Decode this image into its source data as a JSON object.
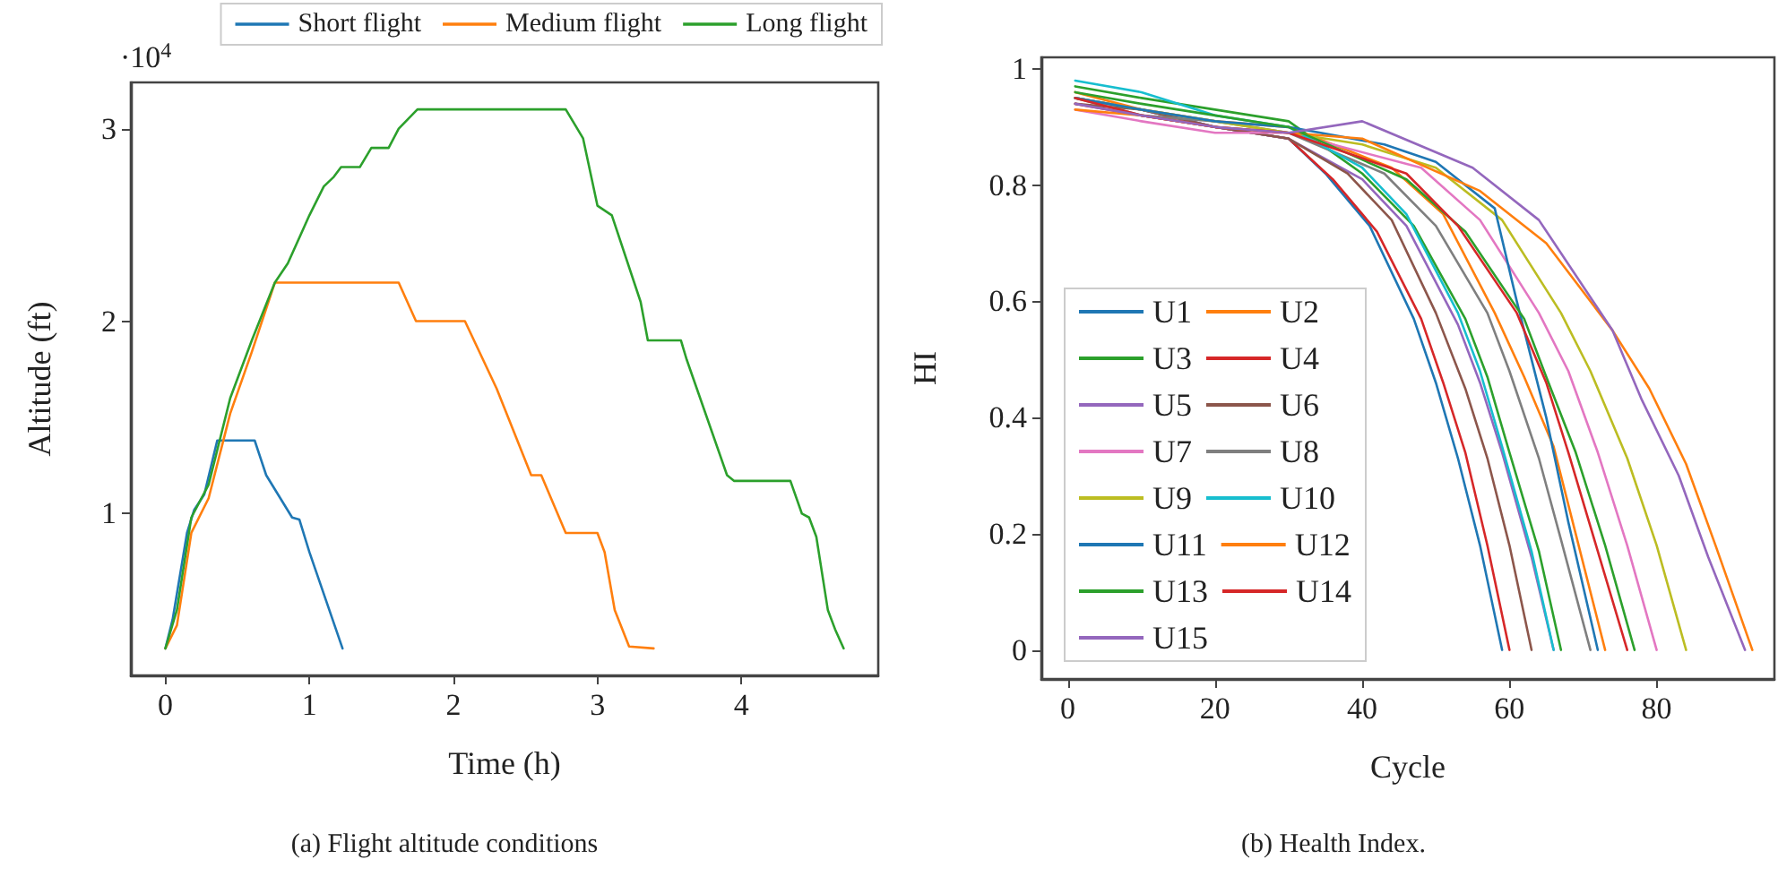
{
  "chart_data": [
    {
      "type": "line",
      "title": "(a) Flight altitude conditions",
      "xlabel": "Time (h)",
      "ylabel": "Altitude (ft)",
      "annotations": [
        "·10$^{4}$"
      ],
      "xlim": [
        -0.24,
        4.95
      ],
      "ylim": [
        0.16,
        3.24
      ],
      "xticks": [
        0,
        1,
        2,
        3,
        4
      ],
      "yticks": [
        1,
        2,
        3
      ],
      "grid": false,
      "legend": "top right",
      "marker": "none",
      "series": [
        {
          "name": "Short flight",
          "color": "#1f77b4",
          "x": [
            0,
            0.05,
            0.15,
            0.2,
            0.27,
            0.36,
            0.62,
            0.7,
            0.88,
            0.93,
            1.0,
            1.23
          ],
          "values": [
            0.3,
            0.45,
            0.9,
            1.02,
            1.1,
            1.38,
            1.38,
            1.2,
            0.98,
            0.97,
            0.8,
            0.3
          ]
        },
        {
          "name": "Medium flight",
          "color": "#ff7f0e",
          "x": [
            0,
            0.08,
            0.18,
            0.3,
            0.45,
            0.6,
            0.76,
            1.62,
            1.74,
            2.08,
            2.3,
            2.54,
            2.61,
            2.78,
            3.0,
            3.05,
            3.12,
            3.22,
            3.39
          ],
          "values": [
            0.3,
            0.42,
            0.9,
            1.08,
            1.52,
            1.84,
            2.2,
            2.2,
            2.0,
            2.0,
            1.65,
            1.2,
            1.2,
            0.9,
            0.9,
            0.8,
            0.5,
            0.31,
            0.3
          ]
        },
        {
          "name": "Long flight",
          "color": "#2ca02c",
          "x": [
            0,
            0.08,
            0.18,
            0.3,
            0.45,
            0.6,
            0.76,
            0.85,
            1.0,
            1.1,
            1.17,
            1.22,
            1.35,
            1.43,
            1.55,
            1.62,
            1.75,
            2.78,
            2.9,
            3.0,
            3.1,
            3.3,
            3.35,
            3.58,
            3.62,
            3.9,
            3.95,
            4.34,
            4.42,
            4.47,
            4.52,
            4.6,
            4.65,
            4.71
          ],
          "values": [
            0.3,
            0.5,
            0.98,
            1.15,
            1.6,
            1.9,
            2.2,
            2.3,
            2.55,
            2.7,
            2.75,
            2.8,
            2.8,
            2.9,
            2.9,
            3.0,
            3.1,
            3.1,
            2.95,
            2.6,
            2.55,
            2.1,
            1.9,
            1.9,
            1.8,
            1.2,
            1.17,
            1.17,
            1.0,
            0.98,
            0.88,
            0.5,
            0.4,
            0.3
          ]
        }
      ]
    },
    {
      "type": "line",
      "title": "(b) Health Index.",
      "xlabel": "Cycle",
      "ylabel": "HI",
      "xlim": [
        -3.6,
        96
      ],
      "ylim": [
        -0.05,
        1.02
      ],
      "xticks": [
        0,
        20,
        40,
        60,
        80
      ],
      "yticks": [
        0,
        0.2,
        0.4,
        0.6,
        0.8,
        1
      ],
      "grid": false,
      "legend": "bottom left",
      "marker": "none",
      "series": [
        {
          "name": "U1",
          "color": "#1f77b4",
          "x": [
            1,
            10,
            20,
            30,
            35,
            41,
            47,
            50,
            53,
            56,
            59
          ],
          "values": [
            0.95,
            0.93,
            0.9,
            0.88,
            0.82,
            0.73,
            0.57,
            0.46,
            0.33,
            0.18,
            0
          ]
        },
        {
          "name": "U2",
          "color": "#ff7f0e",
          "x": [
            1,
            10,
            20,
            30,
            44,
            51,
            58,
            62,
            66,
            69,
            73
          ],
          "values": [
            0.96,
            0.93,
            0.91,
            0.9,
            0.83,
            0.75,
            0.58,
            0.47,
            0.35,
            0.2,
            0
          ]
        },
        {
          "name": "U3",
          "color": "#2ca02c",
          "x": [
            1,
            10,
            20,
            30,
            40,
            47,
            54,
            57,
            60,
            64,
            67
          ],
          "values": [
            0.97,
            0.95,
            0.93,
            0.91,
            0.82,
            0.73,
            0.57,
            0.47,
            0.34,
            0.17,
            0
          ]
        },
        {
          "name": "U4",
          "color": "#d62728",
          "x": [
            1,
            10,
            20,
            30,
            36,
            42,
            48,
            51,
            54,
            57,
            60
          ],
          "values": [
            0.94,
            0.92,
            0.9,
            0.88,
            0.81,
            0.72,
            0.57,
            0.46,
            0.34,
            0.18,
            0
          ]
        },
        {
          "name": "U5",
          "color": "#9467bd",
          "x": [
            1,
            10,
            20,
            30,
            40,
            46,
            53,
            56,
            59,
            63,
            66
          ],
          "values": [
            0.95,
            0.93,
            0.9,
            0.88,
            0.81,
            0.73,
            0.56,
            0.46,
            0.34,
            0.16,
            0
          ]
        },
        {
          "name": "U6",
          "color": "#8c564b",
          "x": [
            1,
            10,
            20,
            30,
            38,
            44,
            50,
            54,
            57,
            60,
            63
          ],
          "values": [
            0.94,
            0.93,
            0.9,
            0.88,
            0.82,
            0.74,
            0.58,
            0.45,
            0.33,
            0.18,
            0
          ]
        },
        {
          "name": "U7",
          "color": "#e377c2",
          "x": [
            1,
            10,
            20,
            30,
            48,
            56,
            64,
            68,
            72,
            76,
            80
          ],
          "values": [
            0.93,
            0.91,
            0.89,
            0.89,
            0.83,
            0.74,
            0.58,
            0.48,
            0.34,
            0.18,
            0
          ]
        },
        {
          "name": "U8",
          "color": "#7f7f7f",
          "x": [
            1,
            10,
            20,
            30,
            43,
            50,
            57,
            60,
            64,
            67,
            71
          ],
          "values": [
            0.95,
            0.92,
            0.91,
            0.89,
            0.82,
            0.73,
            0.58,
            0.48,
            0.33,
            0.19,
            0
          ]
        },
        {
          "name": "U9",
          "color": "#bcbd22",
          "x": [
            1,
            10,
            20,
            30,
            40,
            50,
            59,
            67,
            71,
            76,
            80,
            84
          ],
          "values": [
            0.95,
            0.93,
            0.91,
            0.89,
            0.87,
            0.83,
            0.74,
            0.58,
            0.48,
            0.33,
            0.18,
            0
          ]
        },
        {
          "name": "U10",
          "color": "#17becf",
          "x": [
            1,
            10,
            20,
            30,
            40,
            46,
            53,
            56,
            59,
            63,
            66
          ],
          "values": [
            0.98,
            0.96,
            0.92,
            0.9,
            0.83,
            0.75,
            0.58,
            0.48,
            0.35,
            0.17,
            0
          ]
        },
        {
          "name": "U11",
          "color": "#1f77b4",
          "x": [
            1,
            10,
            20,
            30,
            43,
            50,
            58,
            61,
            65,
            68,
            72
          ],
          "values": [
            0.95,
            0.93,
            0.91,
            0.9,
            0.87,
            0.84,
            0.76,
            0.6,
            0.4,
            0.22,
            0
          ]
        },
        {
          "name": "U12",
          "color": "#ff7f0e",
          "x": [
            1,
            10,
            20,
            30,
            40,
            56,
            65,
            74,
            79,
            84,
            88,
            93
          ],
          "values": [
            0.93,
            0.92,
            0.9,
            0.89,
            0.88,
            0.79,
            0.7,
            0.55,
            0.45,
            0.32,
            0.18,
            0
          ]
        },
        {
          "name": "U13",
          "color": "#2ca02c",
          "x": [
            1,
            10,
            20,
            30,
            46,
            54,
            62,
            65,
            69,
            73,
            77
          ],
          "values": [
            0.96,
            0.94,
            0.92,
            0.9,
            0.81,
            0.72,
            0.57,
            0.47,
            0.34,
            0.18,
            0
          ]
        },
        {
          "name": "U14",
          "color": "#d62728",
          "x": [
            1,
            10,
            20,
            30,
            46,
            53,
            61,
            65,
            68,
            72,
            76
          ],
          "values": [
            0.95,
            0.92,
            0.9,
            0.89,
            0.82,
            0.73,
            0.58,
            0.46,
            0.34,
            0.17,
            0
          ]
        },
        {
          "name": "U15",
          "color": "#9467bd",
          "x": [
            1,
            10,
            20,
            30,
            40,
            55,
            64,
            74,
            78,
            83,
            87,
            92
          ],
          "values": [
            0.94,
            0.92,
            0.9,
            0.89,
            0.91,
            0.83,
            0.74,
            0.55,
            0.43,
            0.3,
            0.16,
            0
          ]
        }
      ]
    }
  ]
}
